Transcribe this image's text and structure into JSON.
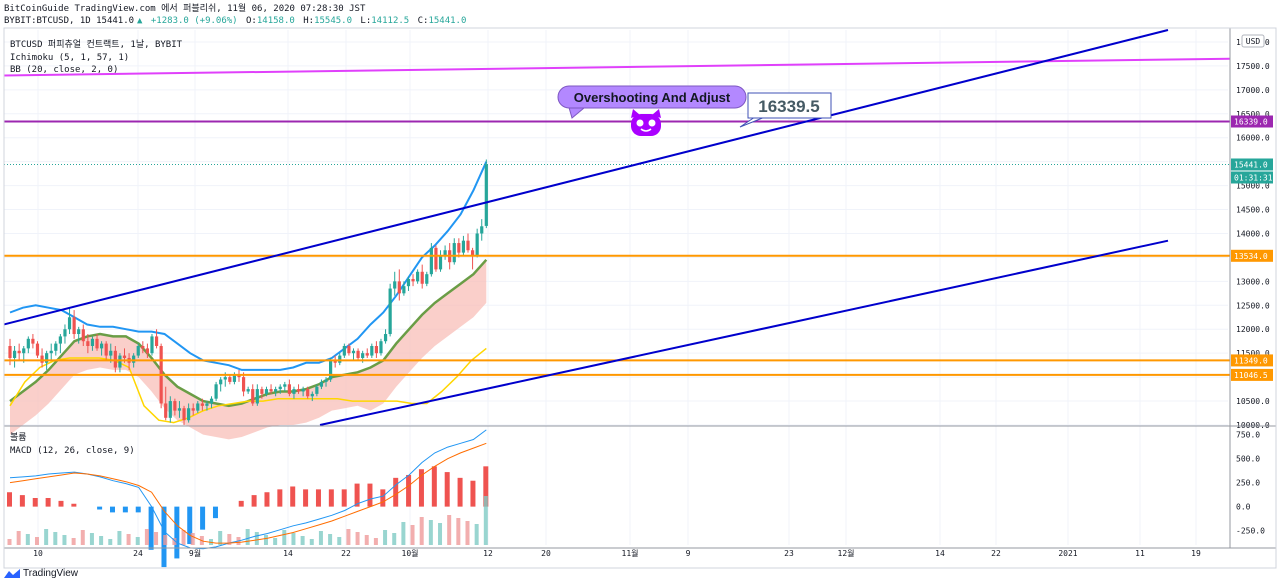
{
  "header": {
    "line1": "BitCoinGuide TradingView.com 에서 퍼블리쉬, 11월 06, 2020 07:28:30 JST",
    "symbol": "BYBIT:BTCUSD, 1D 15441.0",
    "change": "+1283.0 (+9.06%)",
    "open_label": "O:",
    "open": "14158.0",
    "high_label": "H:",
    "high": "15545.0",
    "low_label": "L:",
    "low": "14112.5",
    "close_label": "C:",
    "close": "15441.0"
  },
  "legend": {
    "title": "BTCUSD 퍼피츄얼 컨트랙트, 1날, BYBIT",
    "ichimoku": "Ichimoku (5, 1, 57, 1)",
    "bb": "BB (20, close, 2, 0)",
    "volume": "볼륨",
    "macd": "MACD (12, 26, close, 9)"
  },
  "currency_button": "USD",
  "annotation": {
    "callout": "Overshooting And Adjust",
    "price_label": "16339.5"
  },
  "footer": {
    "brand": "TradingView"
  },
  "colors": {
    "up": "#26a69a",
    "down": "#ef5350",
    "orange": "#ff9800",
    "purple": "#9c27b0",
    "magenta": "#e040fb",
    "blue": "#0000cc",
    "bb_band": "#2196f3",
    "bb_basis": "#6a9d46",
    "kijun": "#ffd600",
    "macd_line": "#2196f3",
    "signal_line": "#ff6d00",
    "callout_bg": "#b388ff"
  },
  "chart_data": [
    {
      "type": "candlestick",
      "title": "BTCUSD 퍼피츄얼 컨트랙트, 1날, BYBIT",
      "x_tick_labels": [
        "10",
        "24",
        "9월",
        "14",
        "22",
        "10월",
        "12",
        "20",
        "11월",
        "9",
        "23",
        "12월",
        "14",
        "22",
        "2021",
        "11",
        "19"
      ],
      "y_ticks": [
        10000,
        10500,
        11000,
        11500,
        12000,
        12500,
        13000,
        13500,
        14000,
        14500,
        15000,
        15500,
        16000,
        16500,
        17000,
        17500,
        18000
      ],
      "ylim": [
        10000,
        18250
      ],
      "last_price": 15441.0,
      "countdown": "01:31:31",
      "horizontal_levels": [
        {
          "label": "16339.0",
          "value": 16339.0,
          "color": "#9c27b0"
        },
        {
          "label": "13534.0",
          "value": 13534.0,
          "color": "#ff9800"
        },
        {
          "label": "11349.0",
          "value": 11349.0,
          "color": "#ff9800"
        },
        {
          "label": "11046.5",
          "value": 11046.5,
          "color": "#ff9800"
        }
      ],
      "candles": [
        [
          11650,
          11800,
          11250,
          11400
        ],
        [
          11400,
          11650,
          11200,
          11550
        ],
        [
          11550,
          11700,
          11350,
          11500
        ],
        [
          11500,
          11650,
          11300,
          11600
        ],
        [
          11600,
          11850,
          11500,
          11800
        ],
        [
          11800,
          11900,
          11600,
          11700
        ],
        [
          11700,
          11750,
          11400,
          11450
        ],
        [
          11450,
          11600,
          11200,
          11300
        ],
        [
          11300,
          11550,
          11150,
          11500
        ],
        [
          11500,
          11700,
          11350,
          11550
        ],
        [
          11550,
          11750,
          11450,
          11700
        ],
        [
          11700,
          11900,
          11500,
          11850
        ],
        [
          11850,
          12100,
          11700,
          12000
        ],
        [
          12000,
          12450,
          11900,
          12250
        ],
        [
          12250,
          12400,
          11800,
          11900
        ],
        [
          11900,
          12050,
          11700,
          12000
        ],
        [
          12000,
          12100,
          11650,
          11750
        ],
        [
          11750,
          11900,
          11500,
          11650
        ],
        [
          11650,
          11850,
          11550,
          11800
        ],
        [
          11800,
          11900,
          11550,
          11600
        ],
        [
          11600,
          11750,
          11450,
          11700
        ],
        [
          11700,
          11750,
          11350,
          11450
        ],
        [
          11450,
          11700,
          11300,
          11550
        ],
        [
          11550,
          11650,
          11100,
          11200
        ],
        [
          11200,
          11500,
          11100,
          11450
        ],
        [
          11450,
          11600,
          11300,
          11400
        ],
        [
          11400,
          11500,
          11150,
          11300
        ],
        [
          11300,
          11500,
          11200,
          11450
        ],
        [
          11450,
          11700,
          11400,
          11650
        ],
        [
          11650,
          11750,
          11500,
          11600
        ],
        [
          11600,
          11700,
          11400,
          11500
        ],
        [
          11500,
          11900,
          11450,
          11850
        ],
        [
          11850,
          12000,
          11600,
          11650
        ],
        [
          11650,
          11700,
          10350,
          10450
        ],
        [
          10450,
          10800,
          10100,
          10150
        ],
        [
          10150,
          10600,
          10050,
          10500
        ],
        [
          10500,
          10550,
          10200,
          10300
        ],
        [
          10300,
          10500,
          10150,
          10350
        ],
        [
          10350,
          10400,
          9950,
          10100
        ],
        [
          10100,
          10450,
          10050,
          10350
        ],
        [
          10350,
          10450,
          10200,
          10300
        ],
        [
          10300,
          10500,
          10250,
          10450
        ],
        [
          10450,
          10550,
          10300,
          10400
        ],
        [
          10400,
          10500,
          10300,
          10450
        ],
        [
          10450,
          10600,
          10350,
          10550
        ],
        [
          10550,
          10900,
          10500,
          10850
        ],
        [
          10850,
          11000,
          10700,
          10950
        ],
        [
          10950,
          11100,
          10800,
          11000
        ],
        [
          11000,
          11050,
          10850,
          10900
        ],
        [
          10900,
          11100,
          10850,
          11050
        ],
        [
          11050,
          11150,
          10900,
          11000
        ],
        [
          11000,
          11100,
          10600,
          10700
        ],
        [
          10700,
          10800,
          10650,
          10750
        ],
        [
          10750,
          10850,
          10400,
          10450
        ],
        [
          10450,
          10850,
          10400,
          10750
        ],
        [
          10750,
          10800,
          10550,
          10650
        ],
        [
          10650,
          10800,
          10600,
          10750
        ],
        [
          10750,
          10850,
          10650,
          10700
        ],
        [
          10700,
          10800,
          10600,
          10750
        ],
        [
          10750,
          10850,
          10650,
          10800
        ],
        [
          10800,
          10900,
          10700,
          10850
        ],
        [
          10850,
          10950,
          10600,
          10650
        ],
        [
          10650,
          10800,
          10550,
          10750
        ],
        [
          10750,
          10850,
          10650,
          10700
        ],
        [
          10700,
          10800,
          10600,
          10750
        ],
        [
          10750,
          10800,
          10550,
          10600
        ],
        [
          10600,
          10700,
          10500,
          10650
        ],
        [
          10650,
          10850,
          10600,
          10800
        ],
        [
          10800,
          10950,
          10750,
          10900
        ],
        [
          10900,
          11000,
          10800,
          10950
        ],
        [
          10950,
          11400,
          10900,
          11350
        ],
        [
          11350,
          11450,
          11200,
          11300
        ],
        [
          11300,
          11500,
          11250,
          11450
        ],
        [
          11450,
          11700,
          11400,
          11650
        ],
        [
          11650,
          11700,
          11450,
          11500
        ],
        [
          11500,
          11600,
          11350,
          11550
        ],
        [
          11550,
          11600,
          11350,
          11400
        ],
        [
          11400,
          11550,
          11300,
          11500
        ],
        [
          11500,
          11600,
          11400,
          11450
        ],
        [
          11450,
          11700,
          11400,
          11650
        ],
        [
          11650,
          11750,
          11400,
          11500
        ],
        [
          11500,
          11800,
          11450,
          11750
        ],
        [
          11750,
          12000,
          11700,
          11900
        ],
        [
          11900,
          12950,
          11850,
          12850
        ],
        [
          12850,
          13200,
          12700,
          13000
        ],
        [
          13000,
          13250,
          12600,
          12750
        ],
        [
          12750,
          13000,
          12700,
          12900
        ],
        [
          12900,
          13100,
          12800,
          13050
        ],
        [
          13050,
          13150,
          12900,
          13000
        ],
        [
          13000,
          13250,
          12950,
          13200
        ],
        [
          13200,
          13350,
          12850,
          12950
        ],
        [
          12950,
          13200,
          12900,
          13150
        ],
        [
          13150,
          13800,
          13100,
          13700
        ],
        [
          13700,
          13750,
          13200,
          13250
        ],
        [
          13250,
          13650,
          13200,
          13550
        ],
        [
          13550,
          13750,
          13450,
          13650
        ],
        [
          13650,
          13800,
          13250,
          13400
        ],
        [
          13400,
          13900,
          13350,
          13800
        ],
        [
          13800,
          13900,
          13500,
          13600
        ],
        [
          13600,
          13950,
          13550,
          13850
        ],
        [
          13850,
          14000,
          13600,
          13650
        ],
        [
          13650,
          13700,
          13250,
          13550
        ],
        [
          13550,
          14100,
          13500,
          14000
        ],
        [
          14000,
          14300,
          13850,
          14150
        ],
        [
          14158,
          15545,
          14112.5,
          15441
        ]
      ],
      "bb_upper": [
        12350,
        12450,
        12500,
        12450,
        12400,
        12250,
        12100,
        12050,
        12050,
        12000,
        11950,
        11950,
        11900,
        11700,
        11500,
        11350,
        11300,
        11250,
        11150,
        11150,
        11150,
        11150,
        11200,
        11300,
        11300,
        11400,
        11600,
        11800,
        12100,
        12350,
        12700,
        13100,
        13500,
        13750,
        14050,
        14400,
        14900,
        15500
      ],
      "bb_basis": [
        10500,
        10700,
        10900,
        11150,
        11450,
        11750,
        11850,
        11900,
        11850,
        11850,
        11700,
        11400,
        11050,
        10800,
        10650,
        10500,
        10450,
        10400,
        10450,
        10550,
        10650,
        10700,
        10700,
        10750,
        10850,
        11000,
        11050,
        11100,
        11200,
        11350,
        11700,
        12000,
        12300,
        12550,
        12750,
        12950,
        13150,
        13450
      ],
      "kijun": [
        10400,
        10900,
        11200,
        11350,
        11400,
        11400,
        11400,
        11350,
        11200,
        10400,
        10100,
        10050,
        10150,
        10300,
        10400,
        10450,
        10500,
        10500,
        10550,
        10550,
        10550,
        10550,
        10550,
        10500,
        10500,
        10500,
        10500,
        10450,
        10450,
        10700,
        11000,
        11350,
        11600
      ],
      "macd": [
        300,
        310,
        320,
        340,
        350,
        360,
        340,
        310,
        270,
        240,
        200,
        0,
        -260,
        -380,
        -430,
        -440,
        -420,
        -380,
        -350,
        -310,
        -280,
        -240,
        -200,
        -170,
        -130,
        -90,
        -40,
        30,
        80,
        110,
        230,
        330,
        460,
        560,
        620,
        660,
        700,
        800
      ],
      "signal": [
        250,
        270,
        290,
        310,
        330,
        350,
        340,
        320,
        290,
        260,
        220,
        150,
        -50,
        -200,
        -300,
        -360,
        -380,
        -380,
        -370,
        -350,
        -330,
        -300,
        -270,
        -230,
        -190,
        -150,
        -100,
        -50,
        0,
        50,
        130,
        220,
        330,
        420,
        500,
        560,
        610,
        660
      ],
      "macd_ticks": [
        -250,
        0,
        250,
        500,
        750
      ]
    }
  ]
}
